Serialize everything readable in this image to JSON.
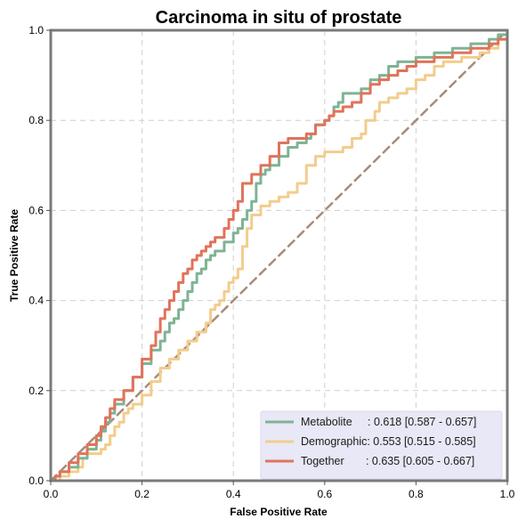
{
  "chart_data": {
    "type": "line",
    "title": "Carcinoma in situ of prostate",
    "xlabel": "False Positive Rate",
    "ylabel": "True Positive Rate",
    "xlim": [
      0,
      1
    ],
    "ylim": [
      0,
      1
    ],
    "xticks": [
      "0.0",
      "0.2",
      "0.4",
      "0.6",
      "0.8",
      "1.0"
    ],
    "yticks": [
      "0.0",
      "0.2",
      "0.4",
      "0.6",
      "0.8",
      "1.0"
    ],
    "grid": true,
    "legend_position": "bottom-right",
    "series": [
      {
        "name": "Metabolite",
        "legend_label": "Metabolite     : 0.618 [0.587 - 0.657]",
        "color": "#7fb394",
        "x": [
          0,
          0.01,
          0.02,
          0.04,
          0.06,
          0.08,
          0.1,
          0.11,
          0.12,
          0.13,
          0.14,
          0.16,
          0.18,
          0.2,
          0.22,
          0.24,
          0.25,
          0.26,
          0.27,
          0.28,
          0.29,
          0.3,
          0.31,
          0.32,
          0.33,
          0.34,
          0.35,
          0.36,
          0.38,
          0.4,
          0.41,
          0.42,
          0.43,
          0.44,
          0.45,
          0.46,
          0.47,
          0.48,
          0.5,
          0.52,
          0.54,
          0.56,
          0.57,
          0.58,
          0.6,
          0.61,
          0.62,
          0.63,
          0.64,
          0.65,
          0.66,
          0.68,
          0.7,
          0.72,
          0.74,
          0.76,
          0.78,
          0.8,
          0.82,
          0.84,
          0.86,
          0.88,
          0.9,
          0.92,
          0.94,
          0.96,
          0.98,
          1.0
        ],
        "y": [
          0,
          0.01,
          0.02,
          0.03,
          0.05,
          0.07,
          0.09,
          0.11,
          0.13,
          0.15,
          0.17,
          0.2,
          0.23,
          0.26,
          0.29,
          0.31,
          0.33,
          0.35,
          0.36,
          0.38,
          0.4,
          0.42,
          0.44,
          0.46,
          0.47,
          0.49,
          0.5,
          0.51,
          0.53,
          0.55,
          0.56,
          0.58,
          0.6,
          0.62,
          0.66,
          0.68,
          0.69,
          0.7,
          0.72,
          0.74,
          0.75,
          0.76,
          0.77,
          0.79,
          0.8,
          0.81,
          0.83,
          0.84,
          0.86,
          0.86,
          0.86,
          0.87,
          0.89,
          0.9,
          0.92,
          0.93,
          0.93,
          0.94,
          0.94,
          0.95,
          0.95,
          0.96,
          0.96,
          0.97,
          0.97,
          0.98,
          0.99,
          1.0
        ]
      },
      {
        "name": "Demographic",
        "legend_label": "Demographic: 0.553 [0.515 - 0.585]",
        "color": "#f2cd8c",
        "x": [
          0,
          0.02,
          0.04,
          0.06,
          0.07,
          0.08,
          0.09,
          0.1,
          0.11,
          0.12,
          0.13,
          0.14,
          0.15,
          0.16,
          0.17,
          0.18,
          0.2,
          0.22,
          0.24,
          0.26,
          0.28,
          0.3,
          0.32,
          0.34,
          0.35,
          0.36,
          0.37,
          0.38,
          0.39,
          0.4,
          0.41,
          0.42,
          0.43,
          0.44,
          0.46,
          0.48,
          0.5,
          0.52,
          0.54,
          0.56,
          0.58,
          0.6,
          0.62,
          0.64,
          0.66,
          0.68,
          0.69,
          0.7,
          0.71,
          0.72,
          0.74,
          0.76,
          0.78,
          0.8,
          0.82,
          0.84,
          0.86,
          0.88,
          0.9,
          0.92,
          0.94,
          0.96,
          0.98,
          1.0
        ],
        "y": [
          0,
          0.01,
          0.02,
          0.03,
          0.05,
          0.06,
          0.06,
          0.06,
          0.07,
          0.08,
          0.1,
          0.12,
          0.13,
          0.15,
          0.16,
          0.17,
          0.19,
          0.22,
          0.25,
          0.27,
          0.29,
          0.31,
          0.33,
          0.35,
          0.38,
          0.39,
          0.4,
          0.42,
          0.44,
          0.45,
          0.47,
          0.52,
          0.56,
          0.59,
          0.61,
          0.62,
          0.63,
          0.64,
          0.66,
          0.7,
          0.72,
          0.73,
          0.73,
          0.74,
          0.76,
          0.77,
          0.8,
          0.8,
          0.82,
          0.84,
          0.85,
          0.86,
          0.87,
          0.89,
          0.9,
          0.92,
          0.93,
          0.93,
          0.94,
          0.94,
          0.95,
          0.96,
          0.98,
          1.0
        ]
      },
      {
        "name": "Together",
        "legend_label": "Together       : 0.635 [0.605 - 0.667]",
        "color": "#e0735a",
        "x": [
          0,
          0.01,
          0.02,
          0.04,
          0.06,
          0.08,
          0.1,
          0.11,
          0.12,
          0.13,
          0.14,
          0.16,
          0.18,
          0.2,
          0.22,
          0.23,
          0.24,
          0.25,
          0.26,
          0.27,
          0.28,
          0.29,
          0.3,
          0.31,
          0.32,
          0.33,
          0.34,
          0.35,
          0.36,
          0.38,
          0.39,
          0.4,
          0.41,
          0.42,
          0.44,
          0.46,
          0.48,
          0.5,
          0.52,
          0.54,
          0.56,
          0.58,
          0.6,
          0.61,
          0.62,
          0.63,
          0.64,
          0.66,
          0.68,
          0.7,
          0.72,
          0.74,
          0.76,
          0.78,
          0.8,
          0.82,
          0.84,
          0.86,
          0.88,
          0.9,
          0.92,
          0.94,
          0.96,
          0.98,
          1.0
        ],
        "y": [
          0,
          0.01,
          0.02,
          0.04,
          0.06,
          0.08,
          0.1,
          0.12,
          0.14,
          0.16,
          0.18,
          0.2,
          0.23,
          0.27,
          0.3,
          0.33,
          0.36,
          0.38,
          0.4,
          0.42,
          0.44,
          0.46,
          0.47,
          0.49,
          0.5,
          0.51,
          0.52,
          0.53,
          0.54,
          0.56,
          0.58,
          0.6,
          0.62,
          0.66,
          0.68,
          0.7,
          0.72,
          0.75,
          0.76,
          0.76,
          0.77,
          0.79,
          0.8,
          0.81,
          0.82,
          0.82,
          0.83,
          0.84,
          0.86,
          0.88,
          0.89,
          0.9,
          0.91,
          0.92,
          0.93,
          0.93,
          0.94,
          0.94,
          0.95,
          0.95,
          0.96,
          0.96,
          0.97,
          0.98,
          1.0
        ]
      },
      {
        "name": "",
        "color": "#a88a7a",
        "dashed": true,
        "x": [
          0,
          1
        ],
        "y": [
          0,
          1
        ]
      }
    ],
    "legend_background": "#e8e8f6"
  }
}
